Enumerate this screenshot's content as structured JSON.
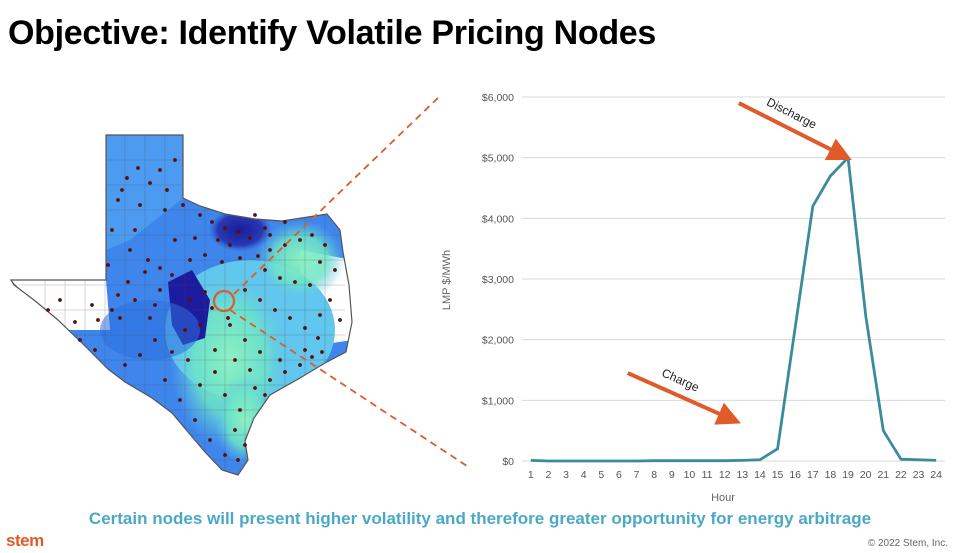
{
  "title": "Objective: Identify Volatile Pricing Nodes",
  "caption": "Certain nodes will present higher volatility and therefore greater opportunity for energy arbitrage",
  "footer": {
    "logo": "stem",
    "copyright": "© 2022 Stem, Inc."
  },
  "colors": {
    "line": "#3C8A9E",
    "arrow": "#E05A2A",
    "caption": "#4BA9C8",
    "grid": "#D9D9D9"
  },
  "chart_data": {
    "type": "line",
    "title": "",
    "xlabel": "Hour",
    "ylabel": "LMP $/MWh",
    "x": [
      1,
      2,
      3,
      4,
      5,
      6,
      7,
      8,
      9,
      10,
      11,
      12,
      13,
      14,
      15,
      16,
      17,
      18,
      19,
      20,
      21,
      22,
      23,
      24
    ],
    "x_tick_labels": [
      "1",
      "2",
      "3",
      "4",
      "5",
      "6",
      "7",
      "8",
      "9",
      "10",
      "11",
      "12",
      "13",
      "14",
      "15",
      "16",
      "17",
      "18",
      "19",
      "20",
      "21",
      "22",
      "23",
      "24"
    ],
    "series": [
      {
        "values": [
          10,
          0,
          0,
          0,
          0,
          0,
          0,
          5,
          5,
          5,
          5,
          5,
          10,
          20,
          200,
          2200,
          4200,
          4700,
          5000,
          2400,
          500,
          30,
          20,
          10
        ]
      }
    ],
    "ylim": [
      0,
      6000
    ],
    "y_ticks": [
      0,
      1000,
      2000,
      3000,
      4000,
      5000,
      6000
    ],
    "y_tick_labels": [
      "$0",
      "$1,000",
      "$2,000",
      "$3,000",
      "$4,000",
      "$5,000",
      "$6,000"
    ],
    "grid": "horizontal",
    "annotations": [
      {
        "text": "Charge",
        "from": [
          6.5,
          1450
        ],
        "to": [
          12.3,
          700
        ]
      },
      {
        "text": "Discharge",
        "from": [
          12.8,
          5900
        ],
        "to": [
          18.6,
          5050
        ]
      }
    ]
  }
}
